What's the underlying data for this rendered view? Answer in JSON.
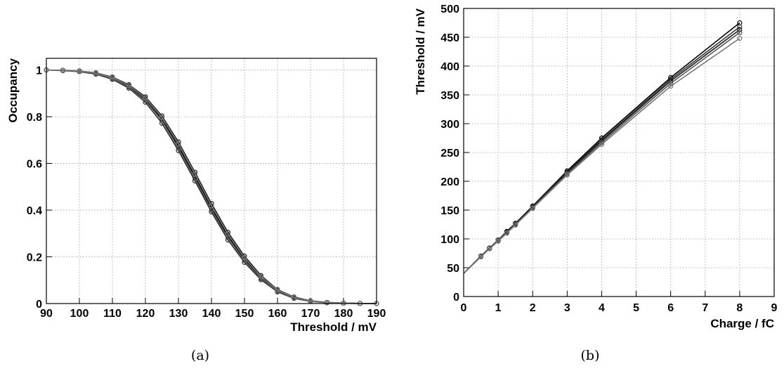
{
  "chart_data": [
    {
      "panel": "(a)",
      "type": "line",
      "xlabel": "Threshold /  mV",
      "ylabel": "Occupancy",
      "xlim": [
        90,
        190
      ],
      "ylim": [
        0,
        1.05
      ],
      "xticks": [
        90,
        100,
        110,
        120,
        130,
        140,
        150,
        160,
        170,
        180,
        190
      ],
      "yticks": [
        0,
        0.2,
        0.4,
        0.6,
        0.8,
        1
      ],
      "ytick_labels": [
        "0",
        "0.2",
        "0.4",
        "0.6",
        "0.8",
        "1"
      ],
      "grid": true,
      "x": [
        90,
        95,
        100,
        105,
        110,
        115,
        120,
        125,
        130,
        135,
        140,
        145,
        150,
        155,
        160,
        165,
        170,
        175,
        180,
        185,
        190
      ],
      "series": [
        {
          "values": [
            1.0,
            0.998,
            0.995,
            0.985,
            0.965,
            0.93,
            0.875,
            0.79,
            0.675,
            0.545,
            0.41,
            0.29,
            0.19,
            0.11,
            0.055,
            0.025,
            0.01,
            0.004,
            0.0015,
            0.0005,
            0.0
          ]
        },
        {
          "values": [
            1.0,
            0.997,
            0.993,
            0.982,
            0.96,
            0.922,
            0.862,
            0.772,
            0.655,
            0.525,
            0.392,
            0.272,
            0.176,
            0.102,
            0.05,
            0.022,
            0.009,
            0.003,
            0.001,
            0.0004,
            0.0
          ]
        },
        {
          "values": [
            1.0,
            0.999,
            0.996,
            0.988,
            0.97,
            0.937,
            0.885,
            0.803,
            0.692,
            0.562,
            0.428,
            0.305,
            0.203,
            0.12,
            0.06,
            0.028,
            0.012,
            0.005,
            0.002,
            0.0007,
            0.0
          ]
        },
        {
          "values": [
            1.0,
            0.998,
            0.994,
            0.984,
            0.963,
            0.927,
            0.87,
            0.783,
            0.665,
            0.535,
            0.4,
            0.282,
            0.184,
            0.107,
            0.053,
            0.024,
            0.01,
            0.004,
            0.0015,
            0.0005,
            0.0
          ]
        },
        {
          "values": [
            1.0,
            0.999,
            0.996,
            0.987,
            0.968,
            0.934,
            0.88,
            0.797,
            0.684,
            0.555,
            0.419,
            0.298,
            0.196,
            0.115,
            0.058,
            0.026,
            0.011,
            0.004,
            0.0016,
            0.0006,
            0.0
          ]
        }
      ]
    },
    {
      "panel": "(b)",
      "type": "line",
      "xlabel": "Charge / fC",
      "ylabel": "Threshold / mV",
      "xlim": [
        0,
        9
      ],
      "ylim": [
        0,
        500
      ],
      "xticks": [
        0,
        1,
        2,
        3,
        4,
        5,
        6,
        7,
        8,
        9
      ],
      "yticks": [
        0,
        50,
        100,
        150,
        200,
        250,
        300,
        350,
        400,
        450,
        500
      ],
      "grid": true,
      "x": [
        0,
        0.5,
        0.75,
        1.0,
        1.25,
        1.5,
        2,
        3,
        4,
        6,
        8
      ],
      "series": [
        {
          "values": [
            40,
            70,
            84,
            98,
            113,
            127,
            157,
            218,
            275,
            380,
            475
          ]
        },
        {
          "values": [
            40,
            70,
            84,
            98,
            112,
            126,
            156,
            216,
            272,
            377,
            468
          ]
        },
        {
          "values": [
            40,
            70,
            84,
            97,
            112,
            126,
            155,
            215,
            270,
            374,
            463
          ]
        },
        {
          "values": [
            40,
            69,
            83,
            97,
            111,
            125,
            154,
            213,
            267,
            370,
            458
          ]
        },
        {
          "values": [
            40,
            69,
            83,
            96,
            110,
            124,
            153,
            211,
            264,
            365,
            448
          ]
        }
      ]
    }
  ],
  "captions": {
    "a": "(a)",
    "b": "(b)"
  }
}
